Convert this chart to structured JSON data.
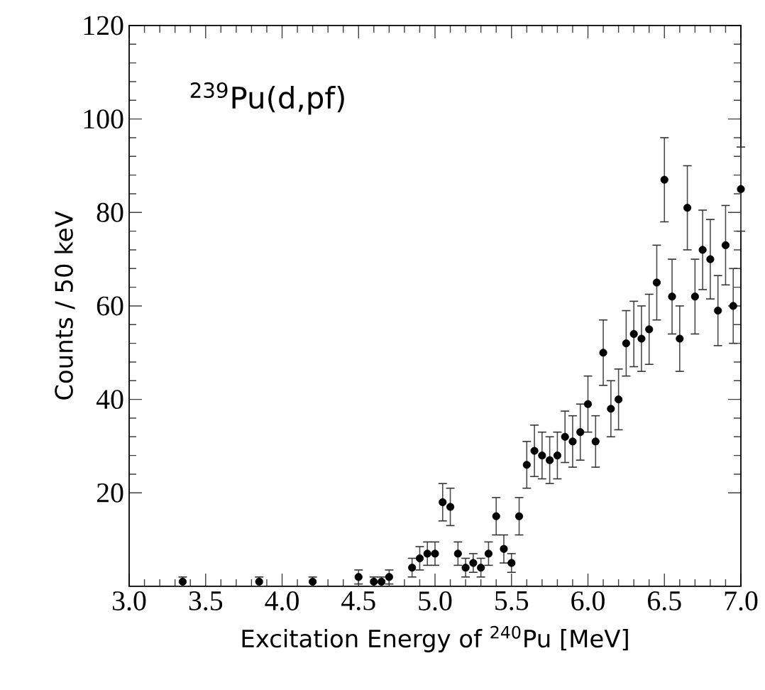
{
  "chart_data": {
    "type": "scatter",
    "xlabel": "Excitation Energy of $^{240}$Pu   [MeV]",
    "ylabel": "Counts / 50 keV",
    "annotations": [
      "$^{239}$Pu(d,pf)"
    ],
    "x": [
      3.35,
      3.85,
      4.2,
      4.5,
      4.6,
      4.65,
      4.7,
      4.85,
      4.9,
      4.95,
      5.0,
      5.05,
      5.1,
      5.15,
      5.2,
      5.25,
      5.3,
      5.35,
      5.4,
      5.45,
      5.5,
      5.55,
      5.6,
      5.65,
      5.7,
      5.75,
      5.8,
      5.85,
      5.9,
      5.95,
      6.0,
      6.05,
      6.1,
      6.15,
      6.2,
      6.25,
      6.3,
      6.35,
      6.4,
      6.45,
      6.5,
      6.55,
      6.6,
      6.65,
      6.7,
      6.75,
      6.8,
      6.85,
      6.9,
      6.95,
      7.0
    ],
    "values": [
      1,
      1,
      1,
      2,
      1,
      1,
      2,
      4,
      6,
      7,
      7,
      18,
      17,
      7,
      4,
      5,
      4,
      7,
      15,
      8,
      5,
      15,
      26,
      29,
      28,
      27,
      28,
      32,
      31,
      33,
      39,
      31,
      50,
      38,
      40,
      52,
      54,
      53,
      55,
      65,
      87,
      62,
      53,
      81,
      62,
      72,
      70,
      59,
      73,
      60,
      85
    ],
    "errors": [
      1,
      1,
      1,
      1.5,
      1,
      1,
      1.5,
      2,
      2.5,
      2.5,
      2.5,
      4,
      4,
      2.5,
      2,
      2,
      2,
      2.5,
      4,
      3,
      2,
      4,
      5,
      5.5,
      5,
      5,
      5,
      5.5,
      5.5,
      6,
      6,
      5.5,
      7,
      6,
      6.5,
      7,
      7,
      7,
      7.5,
      8,
      9,
      8,
      7,
      9,
      8,
      8.5,
      8.5,
      7.5,
      8.5,
      8,
      9
    ],
    "color": "#000000",
    "marker": "circle",
    "xlim": [
      3.0,
      7.0
    ],
    "ylim": [
      0,
      120
    ],
    "xticks": [
      {
        "value": 3.0,
        "label": "3.0"
      },
      {
        "value": 3.5,
        "label": "3.5"
      },
      {
        "value": 4.0,
        "label": "4.0"
      },
      {
        "value": 4.5,
        "label": "4.5"
      },
      {
        "value": 5.0,
        "label": "5.0"
      },
      {
        "value": 5.5,
        "label": "5.5"
      },
      {
        "value": 6.0,
        "label": "6.0"
      },
      {
        "value": 6.5,
        "label": "6.5"
      },
      {
        "value": 7.0,
        "label": "7.0"
      }
    ],
    "yticks": [
      20,
      40,
      60,
      80,
      100,
      120
    ]
  }
}
